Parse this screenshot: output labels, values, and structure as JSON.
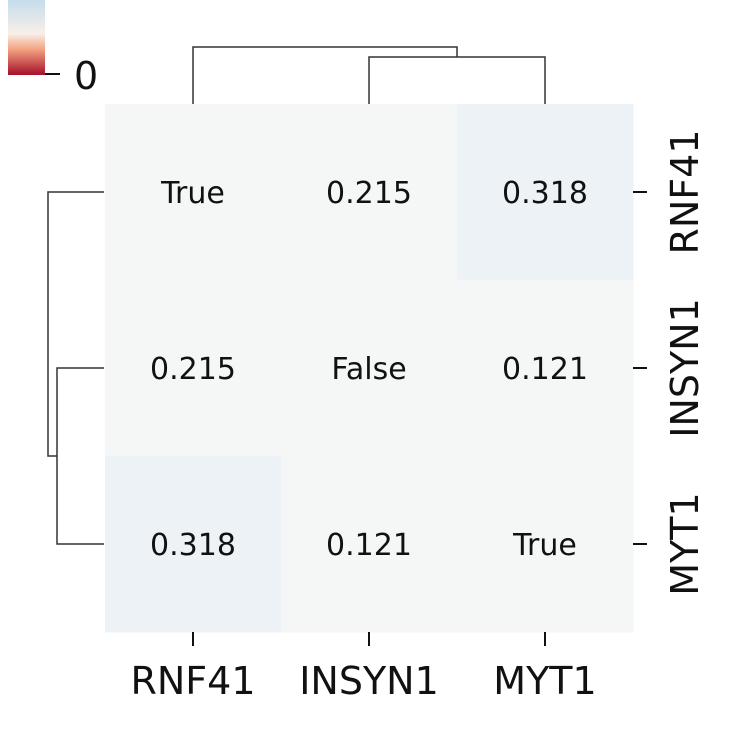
{
  "chart_data": {
    "type": "heatmap",
    "title": "",
    "xlabel": "",
    "ylabel": "",
    "x_categories": [
      "RNF41",
      "INSYN1",
      "MYT1"
    ],
    "y_categories": [
      "RNF41",
      "INSYN1",
      "MYT1"
    ],
    "cell_labels": [
      [
        "True",
        "0.215",
        "0.318"
      ],
      [
        "0.215",
        "False",
        "0.121"
      ],
      [
        "0.318",
        "0.121",
        "True"
      ]
    ],
    "values": [
      [
        0,
        0,
        0.318
      ],
      [
        0,
        0,
        0
      ],
      [
        0.318,
        0,
        0
      ]
    ],
    "colormap": "RdBu",
    "colors": {
      "base_cell": "#f5f6f6",
      "tinted_cell": "#edf2f6",
      "dendrogram": "#333333",
      "cbar_top": "#c4ddec",
      "cbar_mid": "#f8efe9",
      "cbar_low": "#f4a582",
      "cbar_bottom": "#a50f2a"
    },
    "colorbar": {
      "tick_labels": [
        "0"
      ]
    },
    "dendrogram": true,
    "grid": false
  }
}
